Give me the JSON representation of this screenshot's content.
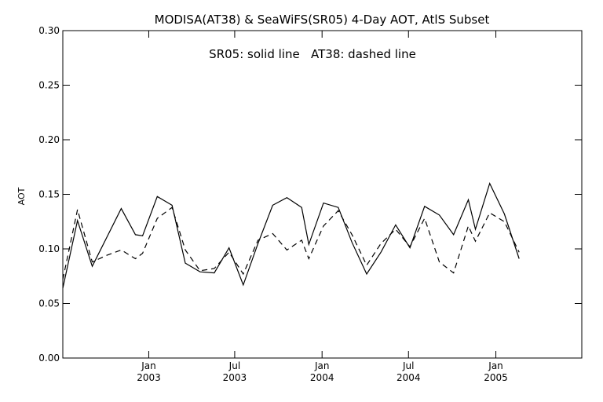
{
  "chart_data": {
    "type": "line",
    "title": "MODISA(AT38) & SeaWiFS(SR05) 4-Day AOT, AtlS Subset",
    "legend_text": "SR05: solid line   AT38: dashed line",
    "ylabel": "AOT",
    "xlabel": "",
    "ylim": [
      0.0,
      0.3
    ],
    "xlim": [
      "2002-07-04",
      "2005-07-01"
    ],
    "grid": false,
    "yticks": [
      {
        "value": 0.0,
        "label": "0.00"
      },
      {
        "value": 0.05,
        "label": "0.05"
      },
      {
        "value": 0.1,
        "label": "0.10"
      },
      {
        "value": 0.15,
        "label": "0.15"
      },
      {
        "value": 0.2,
        "label": "0.20"
      },
      {
        "value": 0.25,
        "label": "0.25"
      },
      {
        "value": 0.3,
        "label": "0.30"
      }
    ],
    "xticks": [
      {
        "date": "2003-01-01",
        "month": "Jan",
        "year": "2003"
      },
      {
        "date": "2003-07-01",
        "month": "Jul",
        "year": "2003"
      },
      {
        "date": "2004-01-01",
        "month": "Jan",
        "year": "2004"
      },
      {
        "date": "2004-07-01",
        "month": "Jul",
        "year": "2004"
      },
      {
        "date": "2005-01-01",
        "month": "Jan",
        "year": "2005"
      }
    ],
    "series": [
      {
        "name": "SR05",
        "style": "solid",
        "color": "#000000",
        "points": [
          {
            "x": "2002-07-04",
            "y": 0.064
          },
          {
            "x": "2002-08-04",
            "y": 0.126
          },
          {
            "x": "2002-09-04",
            "y": 0.084
          },
          {
            "x": "2002-10-04",
            "y": 0.11
          },
          {
            "x": "2002-11-04",
            "y": 0.137
          },
          {
            "x": "2002-12-04",
            "y": 0.113
          },
          {
            "x": "2002-12-19",
            "y": 0.112
          },
          {
            "x": "2003-01-19",
            "y": 0.148
          },
          {
            "x": "2003-02-19",
            "y": 0.14
          },
          {
            "x": "2003-03-19",
            "y": 0.087
          },
          {
            "x": "2003-04-19",
            "y": 0.079
          },
          {
            "x": "2003-05-19",
            "y": 0.078
          },
          {
            "x": "2003-06-19",
            "y": 0.101
          },
          {
            "x": "2003-07-19",
            "y": 0.067
          },
          {
            "x": "2003-08-19",
            "y": 0.105
          },
          {
            "x": "2003-09-19",
            "y": 0.14
          },
          {
            "x": "2003-10-19",
            "y": 0.147
          },
          {
            "x": "2003-11-19",
            "y": 0.138
          },
          {
            "x": "2003-12-04",
            "y": 0.104
          },
          {
            "x": "2004-01-04",
            "y": 0.142
          },
          {
            "x": "2004-02-04",
            "y": 0.138
          },
          {
            "x": "2004-03-04",
            "y": 0.106
          },
          {
            "x": "2004-04-04",
            "y": 0.077
          },
          {
            "x": "2004-05-04",
            "y": 0.097
          },
          {
            "x": "2004-06-04",
            "y": 0.122
          },
          {
            "x": "2004-07-04",
            "y": 0.101
          },
          {
            "x": "2004-08-04",
            "y": 0.139
          },
          {
            "x": "2004-09-04",
            "y": 0.131
          },
          {
            "x": "2004-10-04",
            "y": 0.113
          },
          {
            "x": "2004-11-04",
            "y": 0.145
          },
          {
            "x": "2004-11-19",
            "y": 0.118
          },
          {
            "x": "2004-12-19",
            "y": 0.16
          },
          {
            "x": "2005-01-19",
            "y": 0.132
          },
          {
            "x": "2005-02-19",
            "y": 0.091
          }
        ]
      },
      {
        "name": "AT38",
        "style": "dashed",
        "color": "#000000",
        "points": [
          {
            "x": "2002-07-04",
            "y": 0.072
          },
          {
            "x": "2002-08-04",
            "y": 0.136
          },
          {
            "x": "2002-09-04",
            "y": 0.088
          },
          {
            "x": "2002-10-04",
            "y": 0.094
          },
          {
            "x": "2002-11-04",
            "y": 0.099
          },
          {
            "x": "2002-12-04",
            "y": 0.091
          },
          {
            "x": "2002-12-19",
            "y": 0.096
          },
          {
            "x": "2003-01-19",
            "y": 0.128
          },
          {
            "x": "2003-02-19",
            "y": 0.138
          },
          {
            "x": "2003-03-19",
            "y": 0.099
          },
          {
            "x": "2003-04-19",
            "y": 0.08
          },
          {
            "x": "2003-05-19",
            "y": 0.082
          },
          {
            "x": "2003-06-19",
            "y": 0.097
          },
          {
            "x": "2003-07-19",
            "y": 0.077
          },
          {
            "x": "2003-08-19",
            "y": 0.108
          },
          {
            "x": "2003-09-19",
            "y": 0.114
          },
          {
            "x": "2003-10-19",
            "y": 0.099
          },
          {
            "x": "2003-11-19",
            "y": 0.108
          },
          {
            "x": "2003-12-04",
            "y": 0.091
          },
          {
            "x": "2004-01-04",
            "y": 0.121
          },
          {
            "x": "2004-02-04",
            "y": 0.135
          },
          {
            "x": "2004-03-04",
            "y": 0.113
          },
          {
            "x": "2004-04-04",
            "y": 0.085
          },
          {
            "x": "2004-05-04",
            "y": 0.105
          },
          {
            "x": "2004-06-04",
            "y": 0.118
          },
          {
            "x": "2004-07-04",
            "y": 0.102
          },
          {
            "x": "2004-08-04",
            "y": 0.128
          },
          {
            "x": "2004-09-04",
            "y": 0.088
          },
          {
            "x": "2004-10-04",
            "y": 0.078
          },
          {
            "x": "2004-11-04",
            "y": 0.121
          },
          {
            "x": "2004-11-19",
            "y": 0.107
          },
          {
            "x": "2004-12-19",
            "y": 0.133
          },
          {
            "x": "2005-01-19",
            "y": 0.125
          },
          {
            "x": "2005-02-19",
            "y": 0.097
          }
        ]
      }
    ]
  }
}
